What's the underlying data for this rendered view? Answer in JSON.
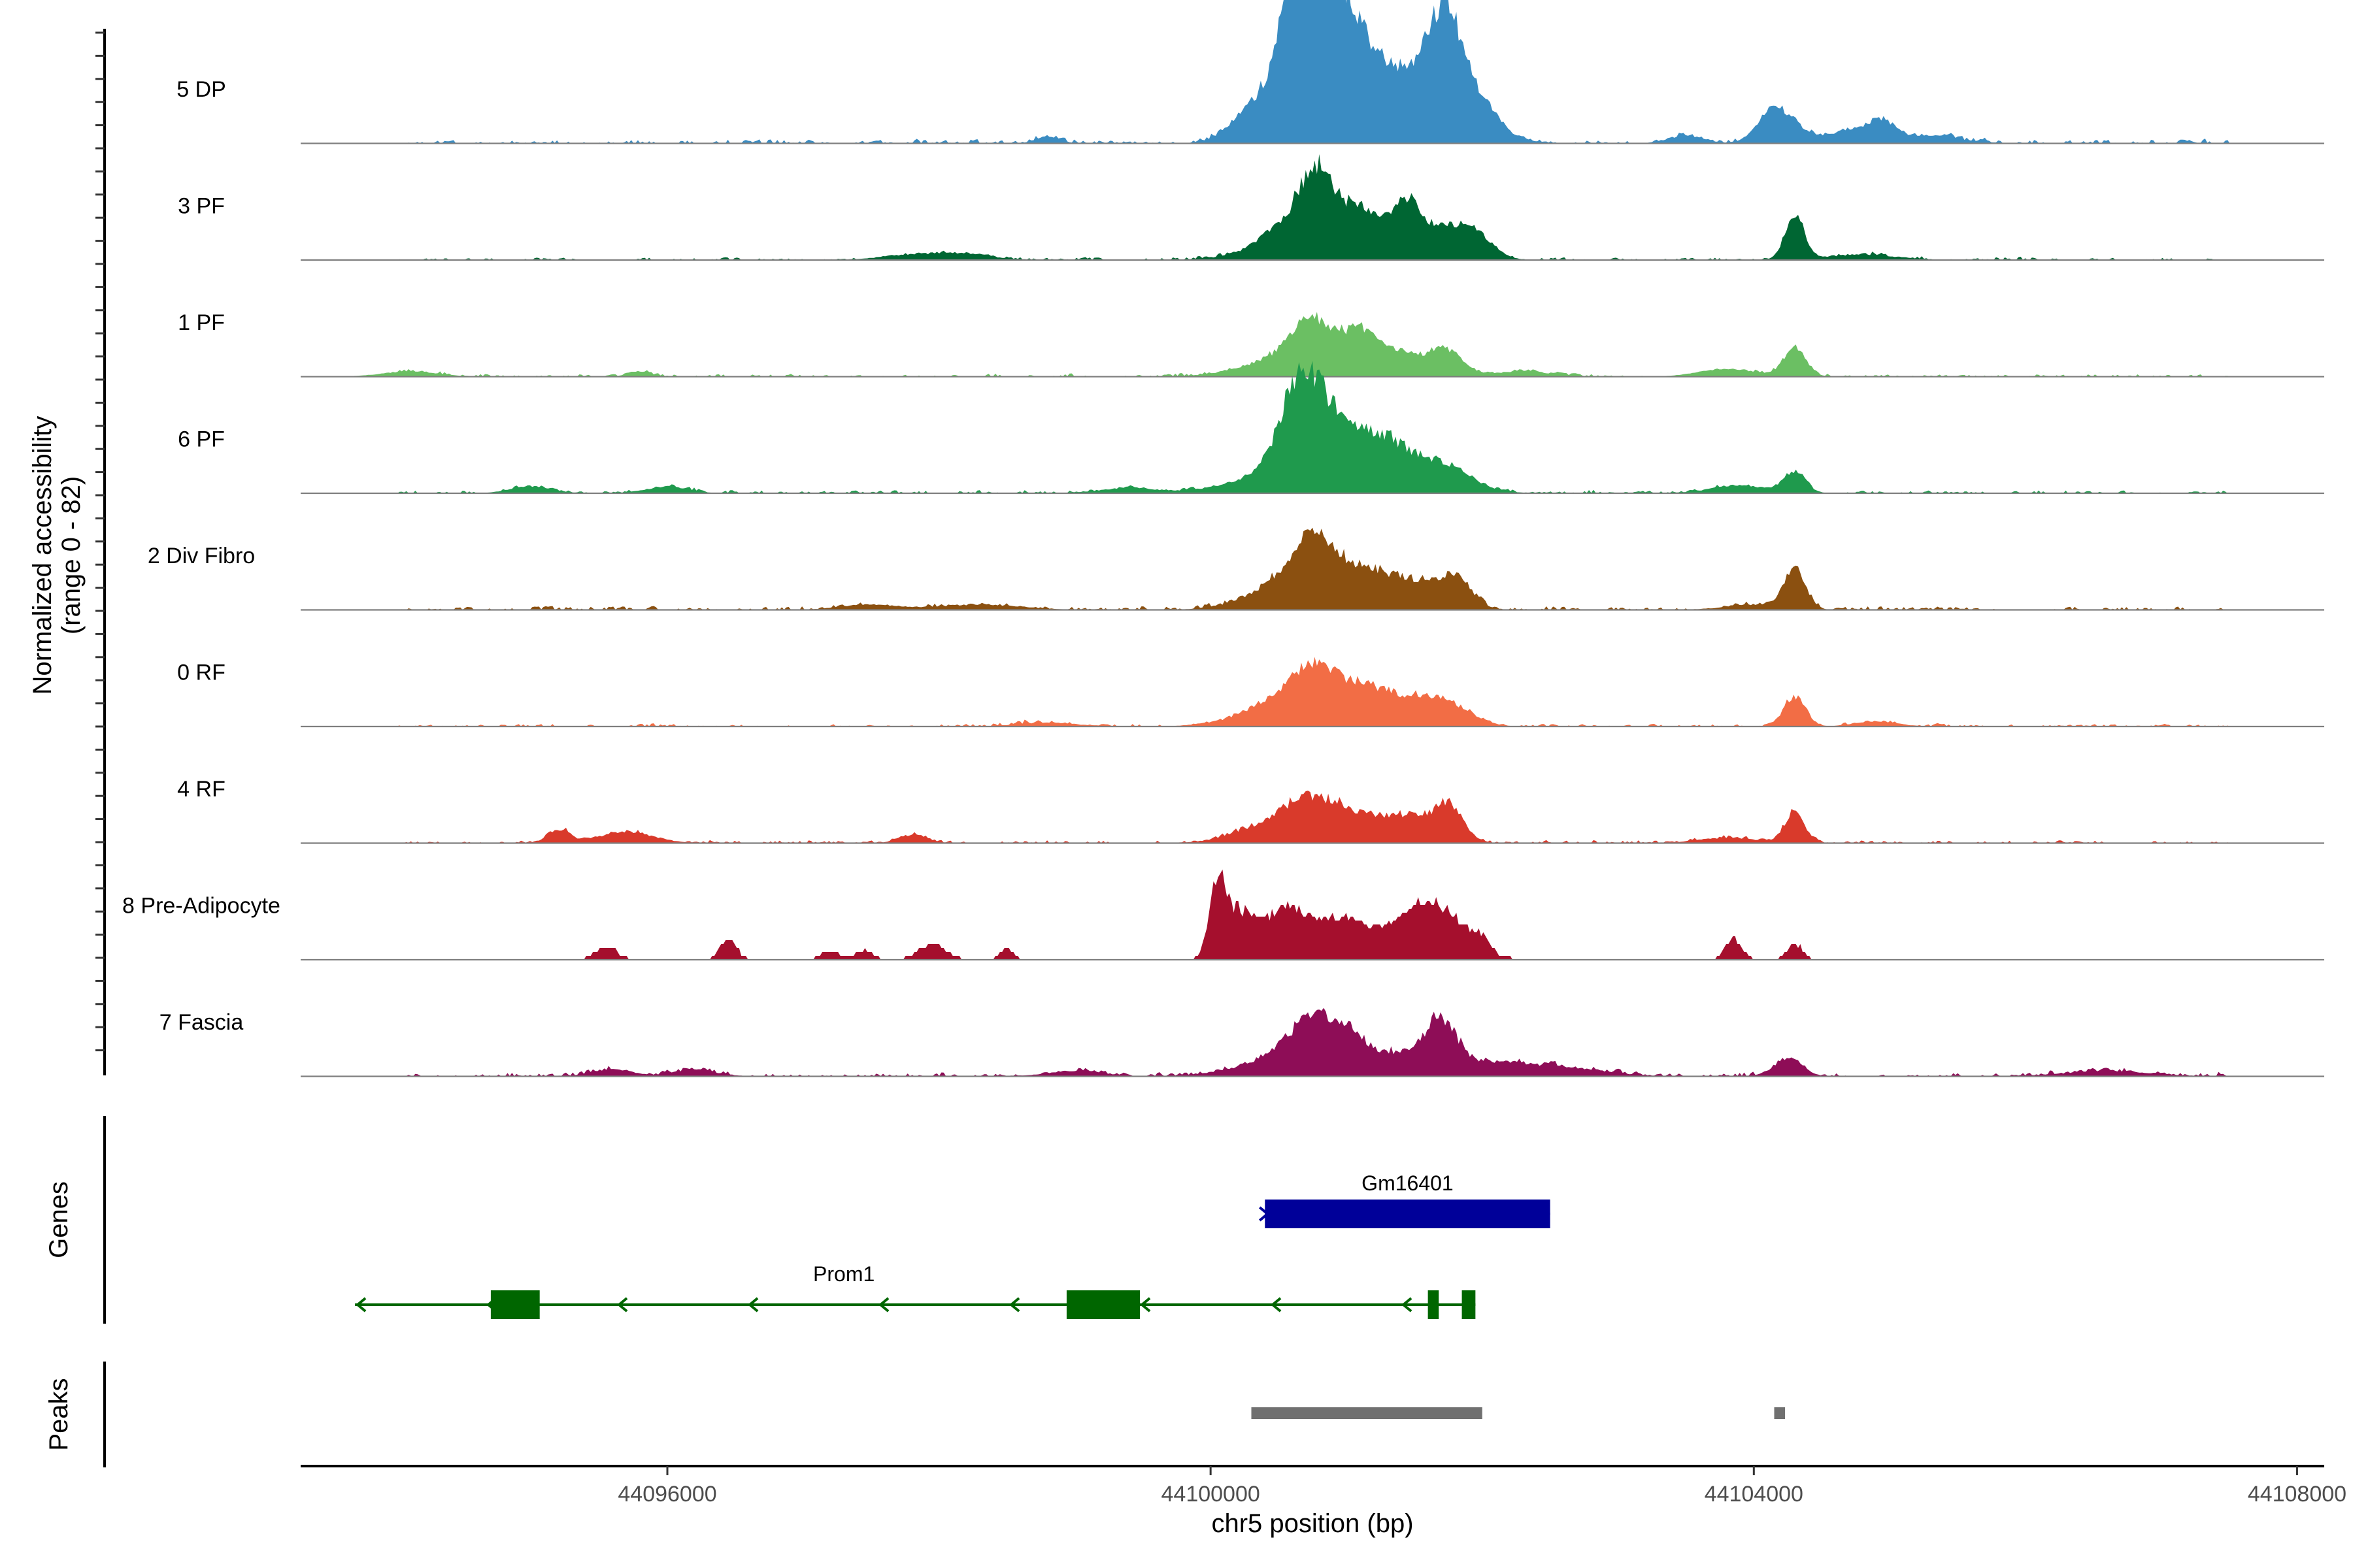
{
  "chart_data": {
    "type": "area",
    "title": "",
    "xlabel": "chr5 position (bp)",
    "ylabel": "Normalized accessibility",
    "ylabel_sub": "(range 0 - 82)",
    "xlim": [
      44093300,
      44108200
    ],
    "x_ticks": [
      {
        "value": 44096000,
        "label": "44096000"
      },
      {
        "value": 44100000,
        "label": "44100000"
      },
      {
        "value": 44104000,
        "label": "44104000"
      },
      {
        "value": 44108000,
        "label": "44108000"
      }
    ],
    "y_range": [
      0,
      82
    ],
    "background_noise_range": [
      44094000,
      44107500
    ],
    "series": [
      {
        "name": "5 DP",
        "color": "#3A8CC2",
        "noise": 0.9,
        "seed": 11,
        "peaks": [
          [
            44100250,
            5,
            130
          ],
          [
            44100500,
            14,
            220
          ],
          [
            44100700,
            26,
            160
          ],
          [
            44100820,
            30,
            130
          ],
          [
            44100620,
            22,
            120
          ],
          [
            44100950,
            22,
            150
          ],
          [
            44101100,
            20,
            200
          ],
          [
            44101350,
            14,
            220
          ],
          [
            44101560,
            15,
            160
          ],
          [
            44101720,
            32,
            110
          ],
          [
            44101900,
            14,
            140
          ],
          [
            44102000,
            6,
            200
          ],
          [
            44098800,
            2.5,
            80
          ],
          [
            44103500,
            3,
            120
          ],
          [
            44104150,
            11,
            120
          ],
          [
            44104300,
            4,
            150
          ],
          [
            44104750,
            5,
            160
          ],
          [
            44104950,
            6,
            100
          ],
          [
            44105300,
            3,
            200
          ]
        ]
      },
      {
        "name": "3 PF",
        "color": "#006633",
        "noise": 0.6,
        "seed": 23,
        "peaks": [
          [
            44100400,
            3,
            250
          ],
          [
            44100650,
            14,
            200
          ],
          [
            44100780,
            20,
            110
          ],
          [
            44101000,
            10,
            150
          ],
          [
            44101200,
            13,
            160
          ],
          [
            44101450,
            14,
            90
          ],
          [
            44101700,
            12,
            200
          ],
          [
            44101950,
            6,
            130
          ],
          [
            44097800,
            2,
            220
          ],
          [
            44098200,
            2,
            200
          ],
          [
            44104300,
            17,
            70
          ],
          [
            44104800,
            2,
            250
          ]
        ]
      },
      {
        "name": "1 PF",
        "color": "#6BBF63",
        "noise": 0.6,
        "seed": 37,
        "peaks": [
          [
            44100300,
            3,
            220
          ],
          [
            44100600,
            8,
            180
          ],
          [
            44100770,
            16,
            130
          ],
          [
            44101050,
            11,
            120
          ],
          [
            44101200,
            8,
            140
          ],
          [
            44101450,
            7,
            200
          ],
          [
            44101750,
            8,
            120
          ],
          [
            44094100,
            2,
            200
          ],
          [
            44095800,
            2,
            80
          ],
          [
            44102300,
            2,
            200
          ],
          [
            44104300,
            11,
            80
          ],
          [
            44103800,
            3,
            200
          ]
        ]
      },
      {
        "name": "6 PF",
        "color": "#1F9A4D",
        "noise": 0.6,
        "seed": 41,
        "peaks": [
          [
            44100200,
            3,
            250
          ],
          [
            44100550,
            10,
            200
          ],
          [
            44100760,
            28,
            140
          ],
          [
            44100600,
            14,
            120
          ],
          [
            44101000,
            16,
            160
          ],
          [
            44101250,
            12,
            150
          ],
          [
            44101450,
            9,
            200
          ],
          [
            44101750,
            8,
            200
          ],
          [
            44095000,
            2.5,
            150
          ],
          [
            44096000,
            2.5,
            150
          ],
          [
            44099400,
            2,
            200
          ],
          [
            44104300,
            8,
            80
          ],
          [
            44103900,
            3,
            200
          ]
        ]
      },
      {
        "name": "2 Div Fibro",
        "color": "#8B5010",
        "noise": 0.8,
        "seed": 53,
        "peaks": [
          [
            44100400,
            4,
            250
          ],
          [
            44100600,
            10,
            180
          ],
          [
            44100760,
            16,
            120
          ],
          [
            44101000,
            14,
            200
          ],
          [
            44101300,
            8,
            180
          ],
          [
            44101550,
            6,
            150
          ],
          [
            44101800,
            12,
            120
          ],
          [
            44097500,
            2,
            200
          ],
          [
            44098300,
            2,
            300
          ],
          [
            44104300,
            15,
            80
          ],
          [
            44104000,
            2,
            200
          ]
        ]
      },
      {
        "name": "0 RF",
        "color": "#F26D45",
        "noise": 0.6,
        "seed": 67,
        "peaks": [
          [
            44100300,
            3,
            250
          ],
          [
            44100550,
            9,
            200
          ],
          [
            44100770,
            14,
            150
          ],
          [
            44101050,
            12,
            200
          ],
          [
            44101350,
            8,
            200
          ],
          [
            44101650,
            7,
            150
          ],
          [
            44101850,
            4,
            150
          ],
          [
            44104300,
            11,
            80
          ],
          [
            44098800,
            1.5,
            200
          ],
          [
            44104900,
            2,
            150
          ]
        ]
      },
      {
        "name": "4 RF",
        "color": "#D93A2B",
        "noise": 0.7,
        "seed": 79,
        "peaks": [
          [
            44100250,
            3,
            200
          ],
          [
            44100550,
            8,
            180
          ],
          [
            44100750,
            10,
            150
          ],
          [
            44101050,
            11,
            200
          ],
          [
            44101450,
            9,
            150
          ],
          [
            44101750,
            14,
            110
          ],
          [
            44095200,
            5,
            80
          ],
          [
            44095700,
            4,
            200
          ],
          [
            44097800,
            3,
            100
          ],
          [
            44104300,
            12,
            70
          ],
          [
            44103800,
            2,
            200
          ]
        ]
      },
      {
        "name": "8 Pre-Adipocyte",
        "color": "#A50F2D",
        "noise": 0,
        "seed": 83,
        "peaks": [
          [
            44100050,
            28,
            60
          ],
          [
            44100200,
            14,
            100
          ],
          [
            44100400,
            10,
            150
          ],
          [
            44100600,
            15,
            120
          ],
          [
            44100900,
            12,
            150
          ],
          [
            44101200,
            10,
            200
          ],
          [
            44101500,
            6,
            150
          ],
          [
            44101700,
            18,
            200
          ],
          [
            44102000,
            4,
            60
          ],
          [
            44095550,
            5,
            80
          ],
          [
            44096450,
            8,
            60
          ],
          [
            44097200,
            4,
            60
          ],
          [
            44097450,
            4,
            60
          ],
          [
            44097950,
            6,
            100
          ],
          [
            44098500,
            4,
            50
          ],
          [
            44103850,
            8,
            60
          ],
          [
            44104300,
            6,
            60
          ]
        ]
      },
      {
        "name": "7 Fascia",
        "color": "#8E0D57",
        "noise": 0.8,
        "seed": 97,
        "peaks": [
          [
            44100300,
            3,
            250
          ],
          [
            44100600,
            10,
            180
          ],
          [
            44100770,
            16,
            120
          ],
          [
            44101000,
            14,
            120
          ],
          [
            44101200,
            4,
            150
          ],
          [
            44101450,
            7,
            200
          ],
          [
            44101700,
            16,
            110
          ],
          [
            44102000,
            5,
            300
          ],
          [
            44102600,
            3,
            300
          ],
          [
            44095600,
            2.5,
            150
          ],
          [
            44096200,
            2.5,
            150
          ],
          [
            44099000,
            2,
            200
          ],
          [
            44104250,
            7,
            100
          ],
          [
            44106600,
            2,
            300
          ]
        ]
      }
    ],
    "genes": [
      {
        "name": "Gm16401",
        "color": "#000099",
        "strand": "+",
        "row": 0,
        "start": 44100400,
        "end": 44102500,
        "exons": [
          [
            44100400,
            44102500
          ]
        ]
      },
      {
        "name": "Prom1",
        "color": "#006600",
        "strand": "-",
        "row": 1,
        "start": 44093700,
        "end": 44101950,
        "exons": [
          [
            44094700,
            44095060
          ],
          [
            44098940,
            44099480
          ],
          [
            44101600,
            44101680
          ],
          [
            44101850,
            44101950
          ]
        ]
      }
    ],
    "peaks_track": [
      [
        44100300,
        44102000
      ],
      [
        44104150,
        44104230
      ]
    ],
    "panel_titles": {
      "genes": "Genes",
      "peaks": "Peaks"
    }
  }
}
